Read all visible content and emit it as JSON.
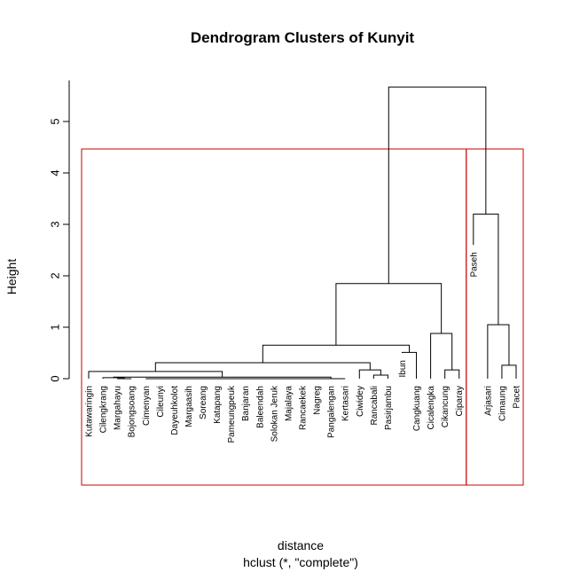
{
  "chart_data": {
    "type": "dendrogram",
    "title": "Dendrogram Clusters of Kunyit",
    "xlabel": "distance",
    "sublabel": "hclust (*, \"complete\")",
    "ylabel": "Height",
    "ylim": [
      0,
      5.8
    ],
    "yticks": [
      0,
      1,
      2,
      3,
      4,
      5
    ],
    "leaves": [
      {
        "name": "Kutawaringin",
        "height": 0.0
      },
      {
        "name": "Cilengkrang",
        "height": 0.0
      },
      {
        "name": "Margahayu",
        "height": 0.0
      },
      {
        "name": "Bojongsoang",
        "height": 0.0
      },
      {
        "name": "Cimenyan",
        "height": 0.0
      },
      {
        "name": "Cileunyi",
        "height": 0.0
      },
      {
        "name": "Dayeuhkolot",
        "height": 0.0
      },
      {
        "name": "Margaasih",
        "height": 0.0
      },
      {
        "name": "Soreang",
        "height": 0.0
      },
      {
        "name": "Katapang",
        "height": 0.0
      },
      {
        "name": "Pameungpeuk",
        "height": 0.0
      },
      {
        "name": "Banjaran",
        "height": 0.0
      },
      {
        "name": "Baleendah",
        "height": 0.0
      },
      {
        "name": "Solokan Jeruk",
        "height": 0.0
      },
      {
        "name": "Majalaya",
        "height": 0.0
      },
      {
        "name": "Rancaekek",
        "height": 0.0
      },
      {
        "name": "Nagreg",
        "height": 0.0
      },
      {
        "name": "Pangalengan",
        "height": 0.0
      },
      {
        "name": "Kertasari",
        "height": 0.0
      },
      {
        "name": "Ciwidey",
        "height": 0.0
      },
      {
        "name": "Rancabali",
        "height": 0.0
      },
      {
        "name": "Pasirjambu",
        "height": 0.0
      },
      {
        "name": "Ibun",
        "height": 0.5
      },
      {
        "name": "Cangkuang",
        "height": 0.0
      },
      {
        "name": "Cicalengka",
        "height": 0.0
      },
      {
        "name": "Cikancung",
        "height": 0.0
      },
      {
        "name": "Ciparay",
        "height": 0.0
      },
      {
        "name": "Paseh",
        "height": 2.6
      },
      {
        "name": "Arjasari",
        "height": 0.0
      },
      {
        "name": "Cimaung",
        "height": 0.0
      },
      {
        "name": "Pacet",
        "height": 0.0
      }
    ],
    "merges": [
      {
        "a": [
          "leaf",
          2
        ],
        "b": [
          "leaf",
          3
        ],
        "height": 0.0
      },
      {
        "a": [
          "leaf",
          4
        ],
        "b": [
          "leaf",
          5
        ],
        "height": 0.0
      },
      {
        "a": [
          "node",
          1
        ],
        "b": [
          "leaf",
          6
        ],
        "height": 0.0
      },
      {
        "a": [
          "node",
          2
        ],
        "b": [
          "leaf",
          7
        ],
        "height": 0.0
      },
      {
        "a": [
          "node",
          3
        ],
        "b": [
          "leaf",
          8
        ],
        "height": 0.0
      },
      {
        "a": [
          "node",
          4
        ],
        "b": [
          "leaf",
          9
        ],
        "height": 0.0
      },
      {
        "a": [
          "node",
          5
        ],
        "b": [
          "leaf",
          10
        ],
        "height": 0.0
      },
      {
        "a": [
          "node",
          6
        ],
        "b": [
          "leaf",
          11
        ],
        "height": 0.0
      },
      {
        "a": [
          "node",
          7
        ],
        "b": [
          "leaf",
          12
        ],
        "height": 0.0
      },
      {
        "a": [
          "node",
          8
        ],
        "b": [
          "leaf",
          13
        ],
        "height": 0.0
      },
      {
        "a": [
          "node",
          9
        ],
        "b": [
          "leaf",
          14
        ],
        "height": 0.0
      },
      {
        "a": [
          "node",
          10
        ],
        "b": [
          "leaf",
          15
        ],
        "height": 0.0
      },
      {
        "a": [
          "node",
          11
        ],
        "b": [
          "leaf",
          16
        ],
        "height": 0.0
      },
      {
        "a": [
          "node",
          12
        ],
        "b": [
          "leaf",
          17
        ],
        "height": 0.0
      },
      {
        "a": [
          "node",
          13
        ],
        "b": [
          "leaf",
          18
        ],
        "height": 0.0
      },
      {
        "a": [
          "leaf",
          1
        ],
        "b": [
          "node",
          0
        ],
        "height": 0.02
      },
      {
        "a": [
          "node",
          15
        ],
        "b": [
          "node",
          14
        ],
        "height": 0.03
      },
      {
        "a": [
          "leaf",
          20
        ],
        "b": [
          "leaf",
          21
        ],
        "height": 0.07
      },
      {
        "a": [
          "leaf",
          0
        ],
        "b": [
          "node",
          16
        ],
        "height": 0.14
      },
      {
        "a": [
          "leaf",
          19
        ],
        "b": [
          "node",
          17
        ],
        "height": 0.17
      },
      {
        "a": [
          "node",
          18
        ],
        "b": [
          "node",
          19
        ],
        "height": 0.31
      },
      {
        "a": [
          "leaf",
          22
        ],
        "b": [
          "leaf",
          23
        ],
        "height": 0.51
      },
      {
        "a": [
          "node",
          20
        ],
        "b": [
          "node",
          21
        ],
        "height": 0.65
      },
      {
        "a": [
          "leaf",
          25
        ],
        "b": [
          "leaf",
          26
        ],
        "height": 0.17
      },
      {
        "a": [
          "leaf",
          24
        ],
        "b": [
          "node",
          23
        ],
        "height": 0.88
      },
      {
        "a": [
          "node",
          22
        ],
        "b": [
          "node",
          24
        ],
        "height": 1.85
      },
      {
        "a": [
          "leaf",
          29
        ],
        "b": [
          "leaf",
          30
        ],
        "height": 0.26
      },
      {
        "a": [
          "leaf",
          28
        ],
        "b": [
          "node",
          26
        ],
        "height": 1.05
      },
      {
        "a": [
          "leaf",
          27
        ],
        "b": [
          "node",
          27
        ],
        "height": 3.2
      },
      {
        "a": [
          "node",
          25
        ],
        "b": [
          "node",
          28
        ],
        "height": 5.67
      }
    ],
    "clusters": [
      {
        "first_leaf": 0,
        "last_leaf": 26
      },
      {
        "first_leaf": 27,
        "last_leaf": 30
      }
    ],
    "cluster_border_color": "#cc0000",
    "line_color": "#000000"
  }
}
